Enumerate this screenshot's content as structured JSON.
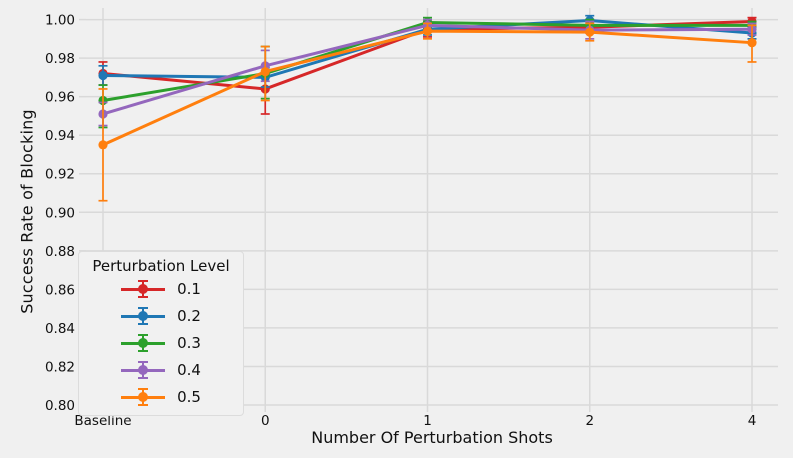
{
  "figure": {
    "background_color": "#f0f0f0",
    "grid_color": "#d9d9d9",
    "text_color": "#111111"
  },
  "chart_data": {
    "type": "line",
    "title": "",
    "xlabel": "Number Of Perturbation Shots",
    "ylabel": "Success Rate of Blocking",
    "categories": [
      "Baseline",
      "0",
      "1",
      "2",
      "4"
    ],
    "ylim": [
      0.8,
      1.006
    ],
    "yticks": [
      0.8,
      0.82,
      0.84,
      0.86,
      0.88,
      0.9,
      0.92,
      0.94,
      0.96,
      0.98,
      1.0
    ],
    "grid": true,
    "marker": "circle-with-errorbars",
    "legend": {
      "title": "Perturbation Level",
      "position": "lower-left-inside"
    },
    "series": [
      {
        "name": "0.1",
        "color": "#d62728",
        "values": [
          0.972,
          0.964,
          0.995,
          0.996,
          0.999
        ],
        "err_lo": [
          0.006,
          0.013,
          0.004,
          0.003,
          0.003
        ],
        "err_hi": [
          0.006,
          0.008,
          0.004,
          0.003,
          0.002
        ]
      },
      {
        "name": "0.2",
        "color": "#1f77b4",
        "values": [
          0.971,
          0.97,
          0.995,
          0.9995,
          0.993
        ],
        "err_lo": [
          0.005,
          0.005,
          0.003,
          0.0025,
          0.003
        ],
        "err_hi": [
          0.005,
          0.005,
          0.003,
          0.0025,
          0.003
        ]
      },
      {
        "name": "0.3",
        "color": "#2ca02c",
        "values": [
          0.958,
          0.972,
          0.9985,
          0.997,
          0.997
        ],
        "err_lo": [
          0.014,
          0.013,
          0.0025,
          0.003,
          0.002
        ],
        "err_hi": [
          0.008,
          0.014,
          0.0025,
          0.003,
          0.002
        ]
      },
      {
        "name": "0.4",
        "color": "#9467bd",
        "values": [
          0.951,
          0.976,
          0.997,
          0.9945,
          0.995
        ],
        "err_lo": [
          0.006,
          0.008,
          0.003,
          0.0045,
          0.003
        ],
        "err_hi": [
          0.006,
          0.008,
          0.003,
          0.0045,
          0.003
        ]
      },
      {
        "name": "0.5",
        "color": "#ff7f0e",
        "values": [
          0.935,
          0.973,
          0.994,
          0.9935,
          0.988
        ],
        "err_lo": [
          0.029,
          0.015,
          0.004,
          0.0045,
          0.01
        ],
        "err_hi": [
          0.029,
          0.013,
          0.004,
          0.0045,
          0.009
        ]
      }
    ]
  }
}
